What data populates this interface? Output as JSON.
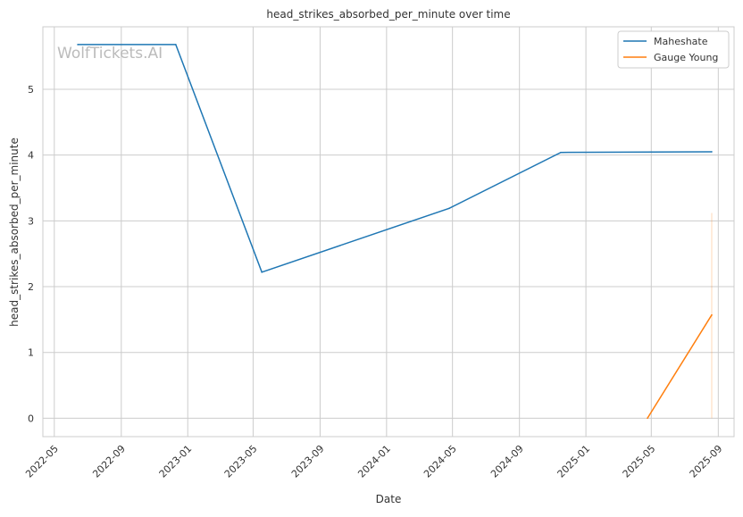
{
  "chart_data": {
    "type": "line",
    "title": "head_strikes_absorbed_per_minute over time",
    "xlabel": "Date",
    "ylabel": "head_strikes_absorbed_per_minute",
    "watermark": "WolfTickets.AI",
    "xlim": [
      "2022-04-10",
      "2025-09-30"
    ],
    "ylim": [
      -0.28,
      5.95
    ],
    "x_ticks": [
      "2022-05",
      "2022-09",
      "2023-01",
      "2023-05",
      "2023-09",
      "2024-01",
      "2024-05",
      "2024-09",
      "2025-01",
      "2025-05",
      "2025-09"
    ],
    "y_ticks": [
      0,
      1,
      2,
      3,
      4,
      5
    ],
    "grid": true,
    "legend_position": "top-right",
    "series": [
      {
        "name": "Maheshate",
        "color": "#1f77b4",
        "x": [
          "2022-06-13",
          "2022-12-10",
          "2023-05-17",
          "2024-04-25",
          "2024-11-16",
          "2025-08-20"
        ],
        "y": [
          5.68,
          5.68,
          2.22,
          3.19,
          4.04,
          4.05
        ]
      },
      {
        "name": "Gauge Young",
        "color": "#ff7f0e",
        "x": [
          "2025-04-24",
          "2025-08-20"
        ],
        "y": [
          0.0,
          1.57
        ],
        "band": {
          "x": "2025-08-20",
          "low": 0.0,
          "high": 3.12
        }
      }
    ]
  }
}
